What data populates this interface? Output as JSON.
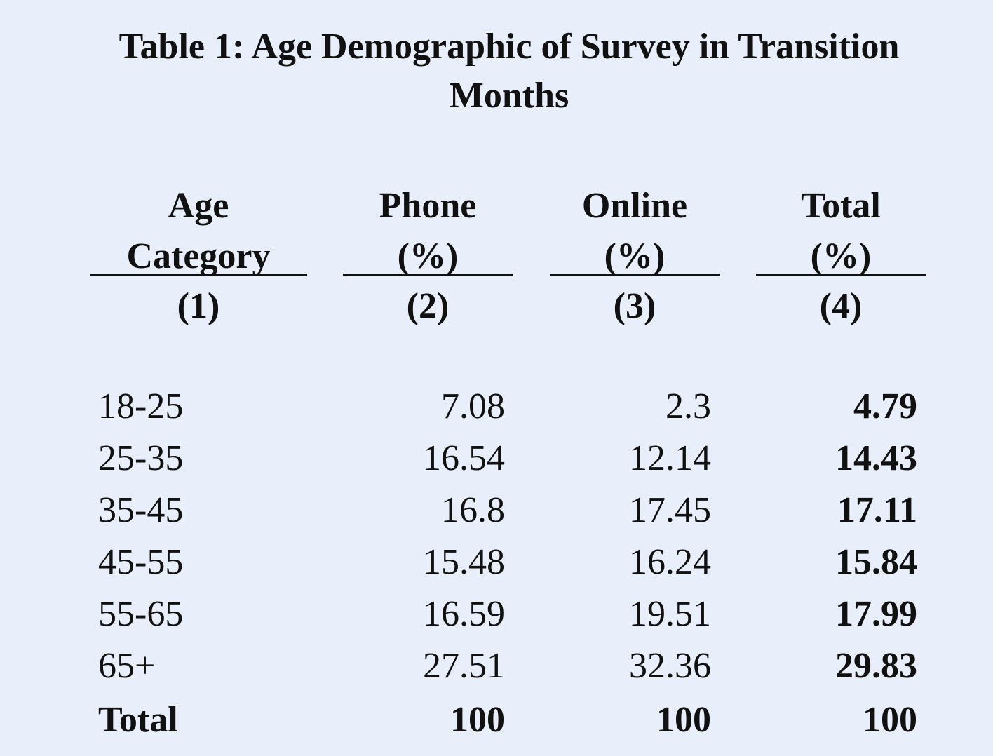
{
  "title": "Table 1: Age Demographic of Survey in Transition Months",
  "columns": [
    {
      "line1": "Age",
      "line2": "Category",
      "number": "(1)"
    },
    {
      "line1": "Phone",
      "line2": "(%)",
      "number": "(2)"
    },
    {
      "line1": "Online",
      "line2": "(%)",
      "number": "(3)"
    },
    {
      "line1": "Total",
      "line2": "(%)",
      "number": "(4)"
    }
  ],
  "rows": [
    {
      "age": "18-25",
      "phone": "7.08",
      "online": "2.3",
      "total": "4.79"
    },
    {
      "age": "25-35",
      "phone": "16.54",
      "online": "12.14",
      "total": "14.43"
    },
    {
      "age": "35-45",
      "phone": "16.8",
      "online": "17.45",
      "total": "17.11"
    },
    {
      "age": "45-55",
      "phone": "15.48",
      "online": "16.24",
      "total": "15.84"
    },
    {
      "age": "55-65",
      "phone": "16.59",
      "online": "19.51",
      "total": "17.99"
    },
    {
      "age": "65+",
      "phone": "27.51",
      "online": "32.36",
      "total": "29.83"
    },
    {
      "age": "Total",
      "phone": "100",
      "online": "100",
      "total": "100"
    }
  ]
}
